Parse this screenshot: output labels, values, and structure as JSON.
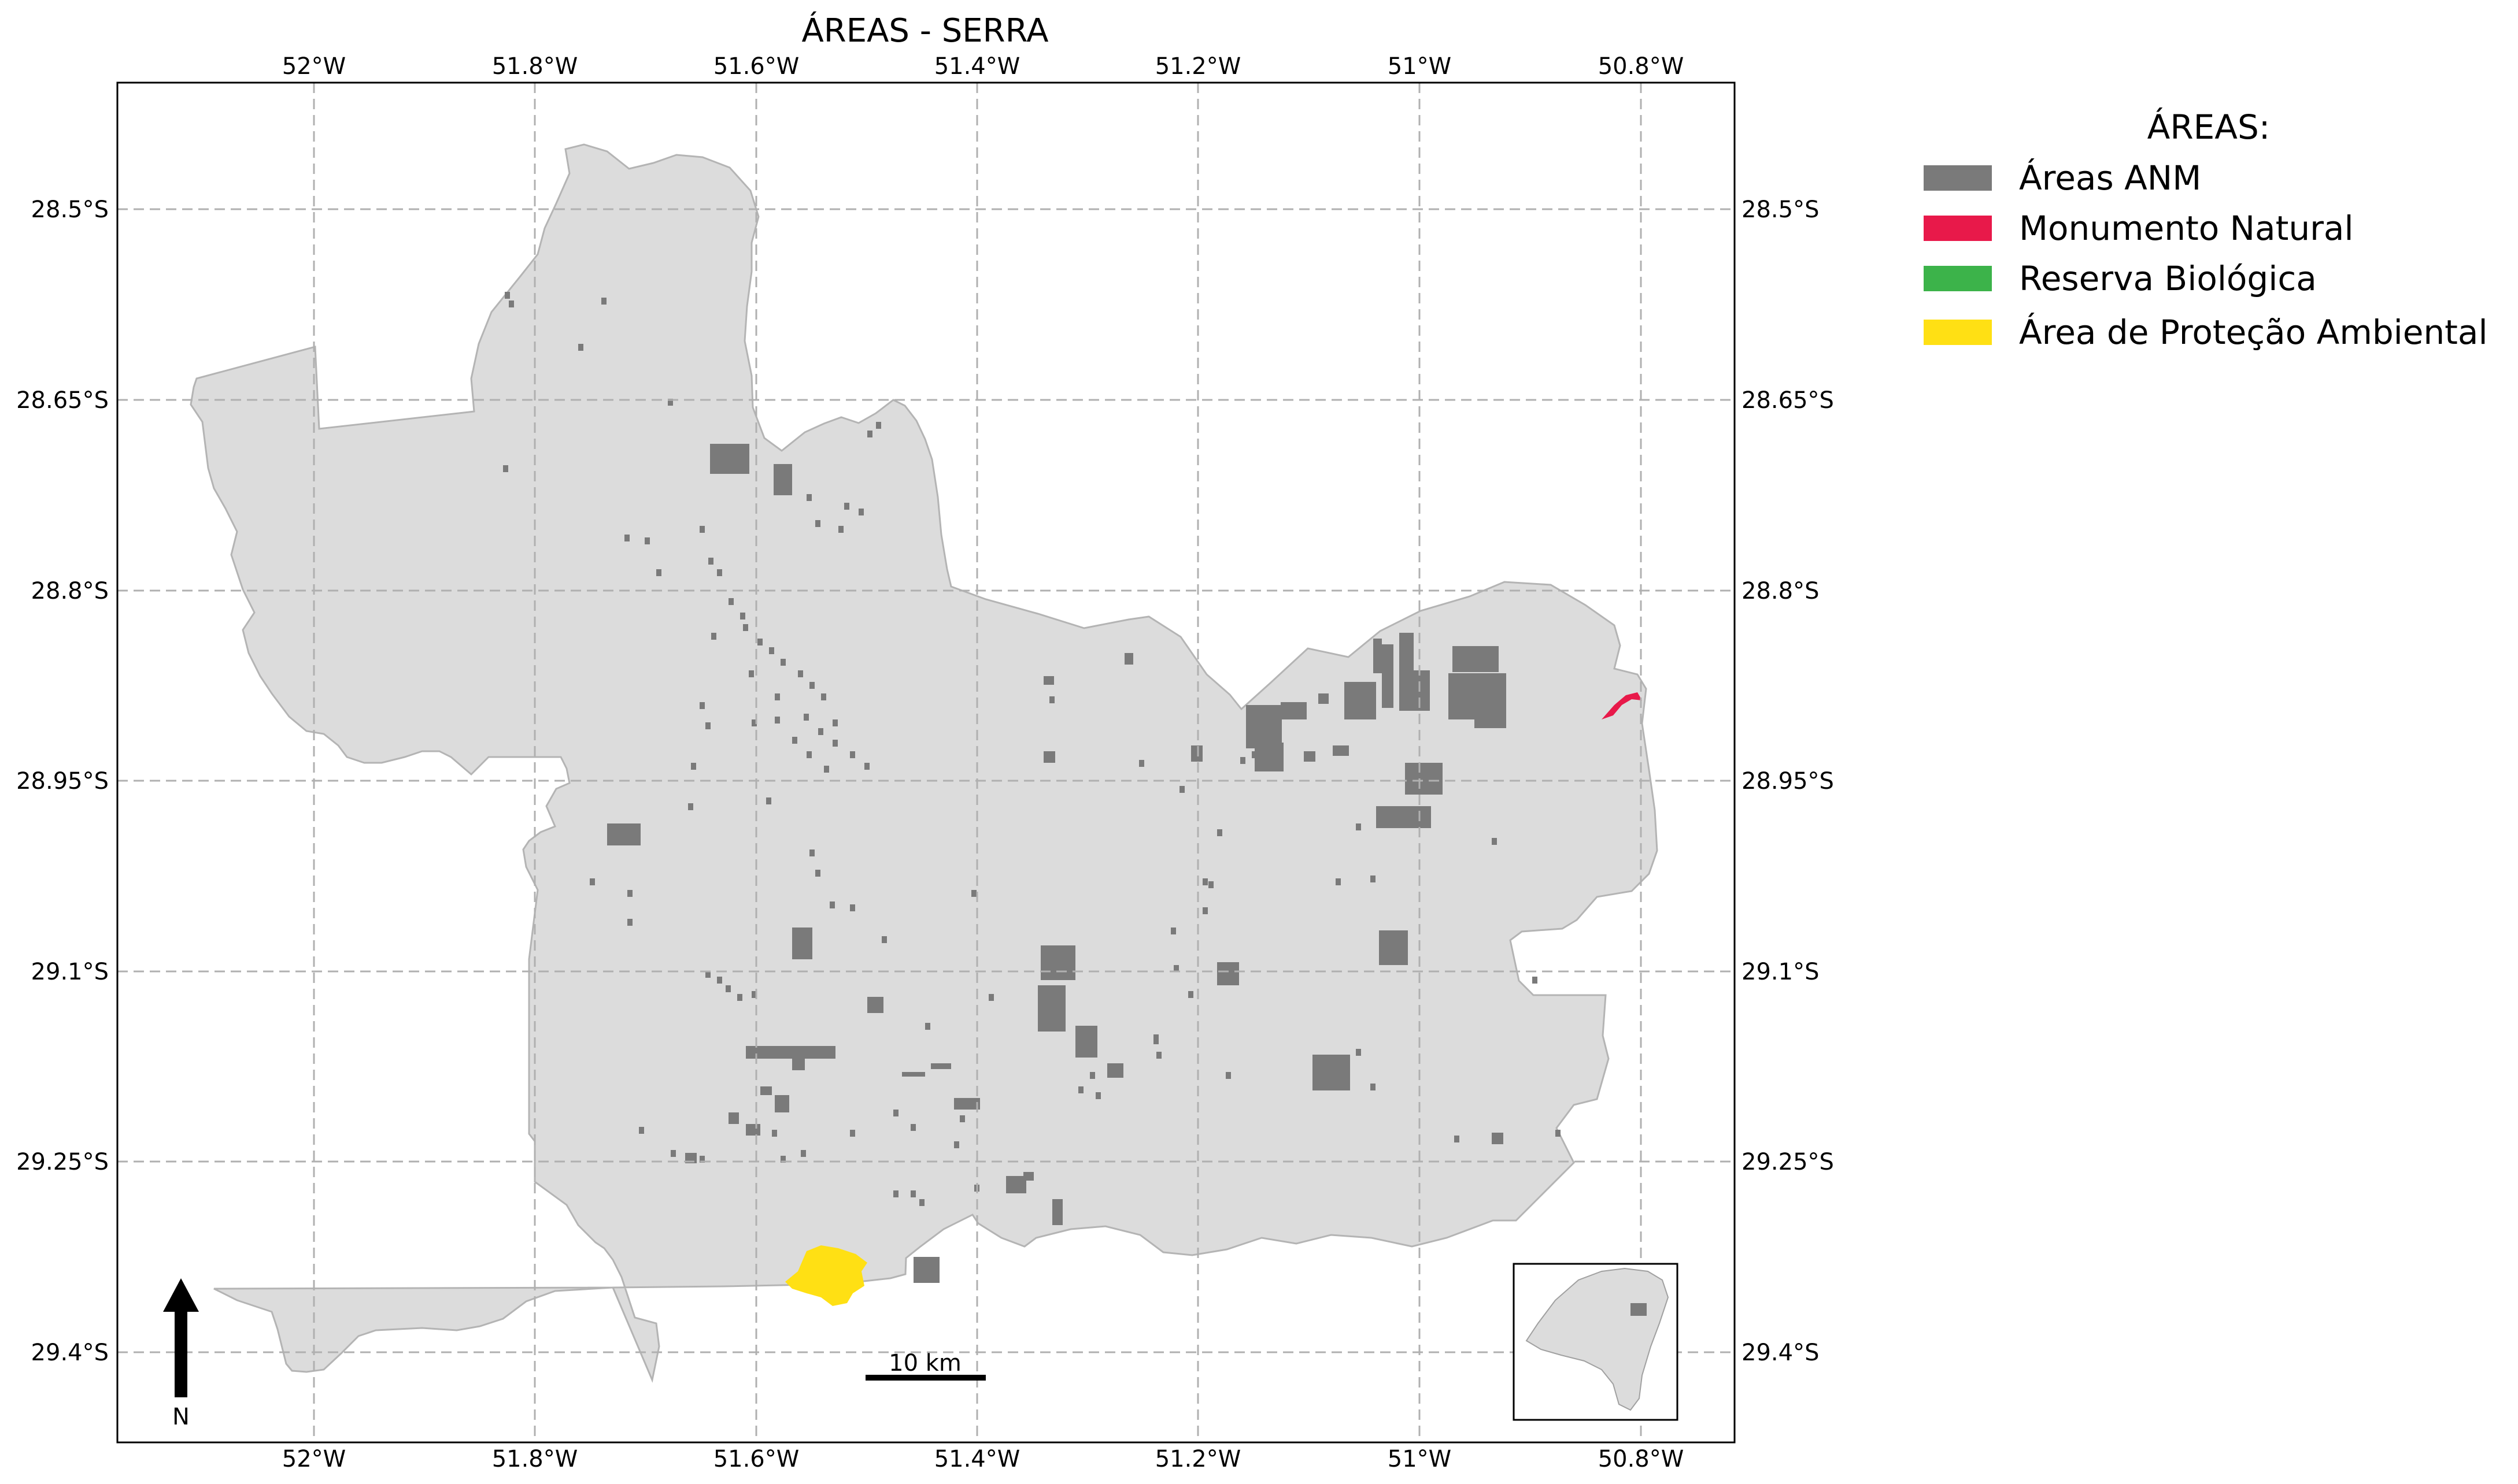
{
  "title": "ÁREAS - SERRA",
  "colors": {
    "region_fill": "#dcdcdc",
    "region_stroke": "#b4b4b4",
    "anm": "#7a7a7a",
    "monumento": "#e8194a",
    "reserva": "#3cb34a",
    "apa": "#ffe014",
    "grid": "#b0b0b0"
  },
  "axes": {
    "lon_ticks": [
      "52°W",
      "51.8°W",
      "51.6°W",
      "51.4°W",
      "51.2°W",
      "51°W",
      "50.8°W"
    ],
    "lat_ticks": [
      "28.5°S",
      "28.65°S",
      "28.8°S",
      "28.95°S",
      "29.1°S",
      "29.25°S",
      "29.4°S"
    ]
  },
  "legend": {
    "title": "ÁREAS:",
    "items": [
      {
        "label": "Áreas ANM",
        "color": "#7a7a7a"
      },
      {
        "label": "Monumento Natural",
        "color": "#e8194a"
      },
      {
        "label": "Reserva Biológica",
        "color": "#3cb34a"
      },
      {
        "label": "Área de Proteção Ambiental",
        "color": "#ffe014"
      }
    ]
  },
  "scale_bar": {
    "label": "10 km"
  },
  "north_arrow": {
    "label": "N"
  },
  "inset": {
    "name": "locator-map"
  }
}
